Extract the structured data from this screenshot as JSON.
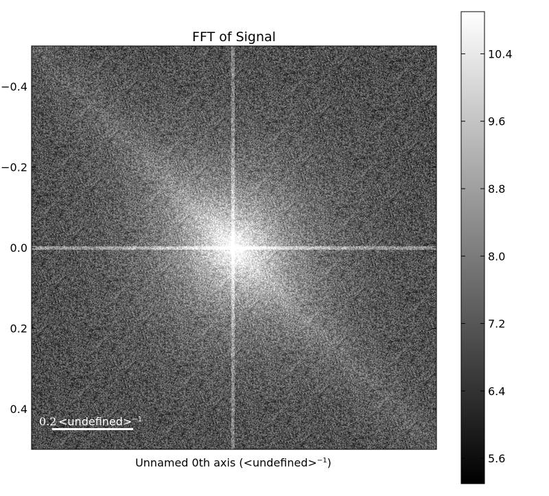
{
  "chart_data": {
    "type": "heatmap",
    "title": "FFT of  Signal",
    "xlabel": "Unnamed 0th axis (<undefined>",
    "xlabel_superscript": "−1",
    "xlabel_suffix": ")",
    "ylabel": "",
    "ylim": [
      -0.5,
      0.5
    ],
    "y_inverted": true,
    "y_ticks": [
      -0.4,
      -0.2,
      0.0,
      0.2,
      0.4
    ],
    "y_tick_labels": [
      "−0.4",
      "−0.2",
      "0.0",
      "0.2",
      "0.4"
    ],
    "x_ticks_visible": false,
    "colormap": "gray",
    "colorbar": {
      "range": [
        5.3,
        10.9
      ],
      "ticks": [
        5.6,
        6.4,
        7.2,
        8.0,
        8.8,
        9.6,
        10.4
      ],
      "tick_labels": [
        "5.6",
        "6.4",
        "7.2",
        "8.0",
        "8.8",
        "9.6",
        "10.4"
      ]
    },
    "scalebar": {
      "value": "0.2",
      "unit": "<undefined>",
      "unit_superscript": "−1",
      "length_data_units": 0.2,
      "color": "#ffffff",
      "placement": "bottom-left"
    },
    "features": {
      "center": [
        0,
        0
      ],
      "bright_center": true,
      "cross_lines": [
        "horizontal-through-zero",
        "vertical-through-zero"
      ],
      "diagonal_streak": "top-left-to-bottom-right"
    }
  }
}
